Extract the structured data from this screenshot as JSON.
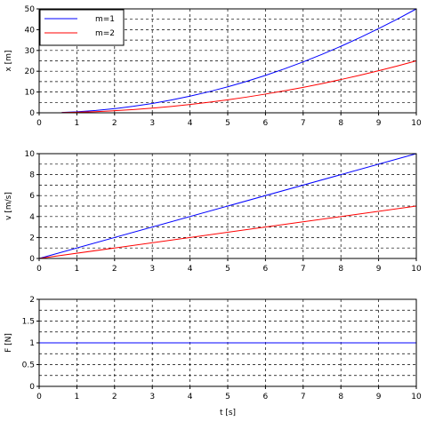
{
  "chart_data": [
    {
      "type": "line",
      "title": "",
      "xlabel": "",
      "ylabel": "x [m]",
      "xlim": [
        0,
        10
      ],
      "ylim": [
        0,
        50
      ],
      "xticks": [
        0,
        1,
        2,
        3,
        4,
        5,
        6,
        7,
        8,
        9,
        10
      ],
      "yticks": [
        0,
        10,
        20,
        30,
        40,
        50
      ],
      "ygrid": [
        0,
        5,
        10,
        15,
        20,
        25,
        30,
        35,
        40,
        45,
        50
      ],
      "grid": true,
      "legend": "top-left",
      "series": [
        {
          "name": "m=1",
          "color": "#0000ff",
          "x": [
            0.6,
            1,
            1.5,
            2,
            2.5,
            3,
            3.5,
            4,
            4.5,
            5,
            5.5,
            6,
            6.5,
            7,
            7.5,
            8,
            8.5,
            9,
            9.5,
            10
          ],
          "y": [
            0.18,
            0.5,
            1.13,
            2,
            3.13,
            4.5,
            6.13,
            8,
            10.13,
            12.5,
            15.13,
            18,
            21.13,
            24.5,
            28.13,
            32,
            36.13,
            40.5,
            45.13,
            50
          ]
        },
        {
          "name": "m=2",
          "color": "#ff0000",
          "x": [
            0.6,
            1,
            1.5,
            2,
            2.5,
            3,
            3.5,
            4,
            4.5,
            5,
            5.5,
            6,
            6.5,
            7,
            7.5,
            8,
            8.5,
            9,
            9.5,
            10
          ],
          "y": [
            0.09,
            0.25,
            0.56,
            1,
            1.56,
            2.25,
            3.06,
            4,
            5.06,
            6.25,
            7.56,
            9,
            10.56,
            12.25,
            14.06,
            16,
            18.06,
            20.25,
            22.56,
            25
          ]
        }
      ]
    },
    {
      "type": "line",
      "title": "",
      "xlabel": "",
      "ylabel": "v [m/s]",
      "xlim": [
        0,
        10
      ],
      "ylim": [
        0,
        10
      ],
      "xticks": [
        0,
        1,
        2,
        3,
        4,
        5,
        6,
        7,
        8,
        9,
        10
      ],
      "yticks": [
        0,
        2,
        4,
        6,
        8,
        10
      ],
      "ygrid": [
        0,
        1,
        2,
        3,
        4,
        5,
        6,
        7,
        8,
        9,
        10
      ],
      "grid": true,
      "series": [
        {
          "color": "#0000ff",
          "x": [
            0,
            10
          ],
          "y": [
            0,
            10
          ]
        },
        {
          "color": "#ff0000",
          "x": [
            0,
            10
          ],
          "y": [
            0,
            5
          ]
        }
      ]
    },
    {
      "type": "line",
      "title": "",
      "xlabel": "t [s]",
      "ylabel": "F [N]",
      "xlim": [
        0,
        10
      ],
      "ylim": [
        0,
        2
      ],
      "xticks": [
        0,
        1,
        2,
        3,
        4,
        5,
        6,
        7,
        8,
        9,
        10
      ],
      "yticks": [
        0,
        0.5,
        1,
        1.5,
        2
      ],
      "ygrid": [
        0,
        0.25,
        0.5,
        0.75,
        1,
        1.25,
        1.5,
        1.75,
        2
      ],
      "grid": true,
      "series": [
        {
          "color": "#0000ff",
          "x": [
            0,
            10
          ],
          "y": [
            1,
            1
          ]
        }
      ]
    }
  ]
}
